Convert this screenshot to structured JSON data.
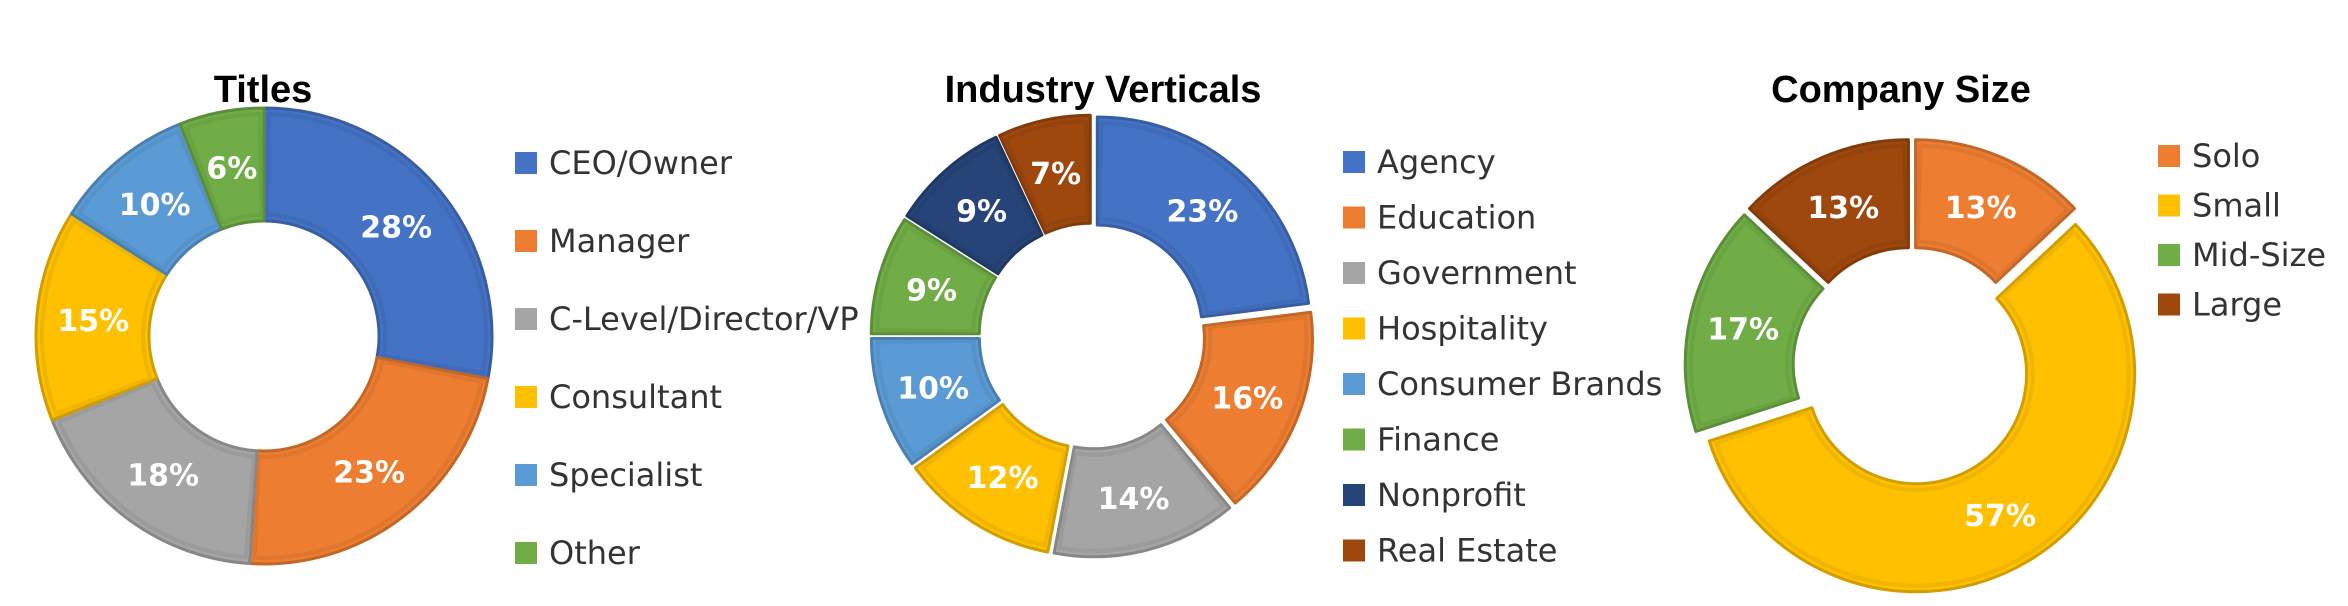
{
  "chart_data": [
    {
      "type": "pie",
      "variant": "donut",
      "title": "Titles",
      "categories": [
        "CEO/Owner",
        "Manager",
        "C-Level/Director/VP",
        "Consultant",
        "Specialist",
        "Other"
      ],
      "values": [
        28,
        23,
        18,
        15,
        10,
        6
      ],
      "labels": [
        "28%",
        "23%",
        "18%",
        "15%",
        "10%",
        "6%"
      ],
      "colors": [
        "#4472c4",
        "#ed7d31",
        "#a5a5a5",
        "#ffc000",
        "#5b9bd5",
        "#70ad47"
      ],
      "legend": "right"
    },
    {
      "type": "pie",
      "variant": "donut",
      "title": "Industry Verticals",
      "categories": [
        "Agency",
        "Education",
        "Government",
        "Hospitality",
        "Consumer Brands",
        "Finance",
        "Nonprofit",
        "Real Estate"
      ],
      "values": [
        23,
        16,
        14,
        12,
        10,
        9,
        9,
        7
      ],
      "labels": [
        "23%",
        "16%",
        "14%",
        "12%",
        "10%",
        "9%",
        "9%",
        "7%"
      ],
      "colors": [
        "#4472c4",
        "#ed7d31",
        "#a5a5a5",
        "#ffc000",
        "#5b9bd5",
        "#70ad47",
        "#264478",
        "#9e480e"
      ],
      "legend": "right"
    },
    {
      "type": "pie",
      "variant": "donut",
      "title": "Company Size",
      "categories": [
        "Solo",
        "Small",
        "Mid-Size",
        "Large"
      ],
      "values": [
        13,
        57,
        17,
        13
      ],
      "labels": [
        "13%",
        "57%",
        "17%",
        "13%"
      ],
      "colors": [
        "#ed7d31",
        "#ffc000",
        "#70ad47",
        "#9e480e"
      ],
      "legend": "right"
    }
  ]
}
